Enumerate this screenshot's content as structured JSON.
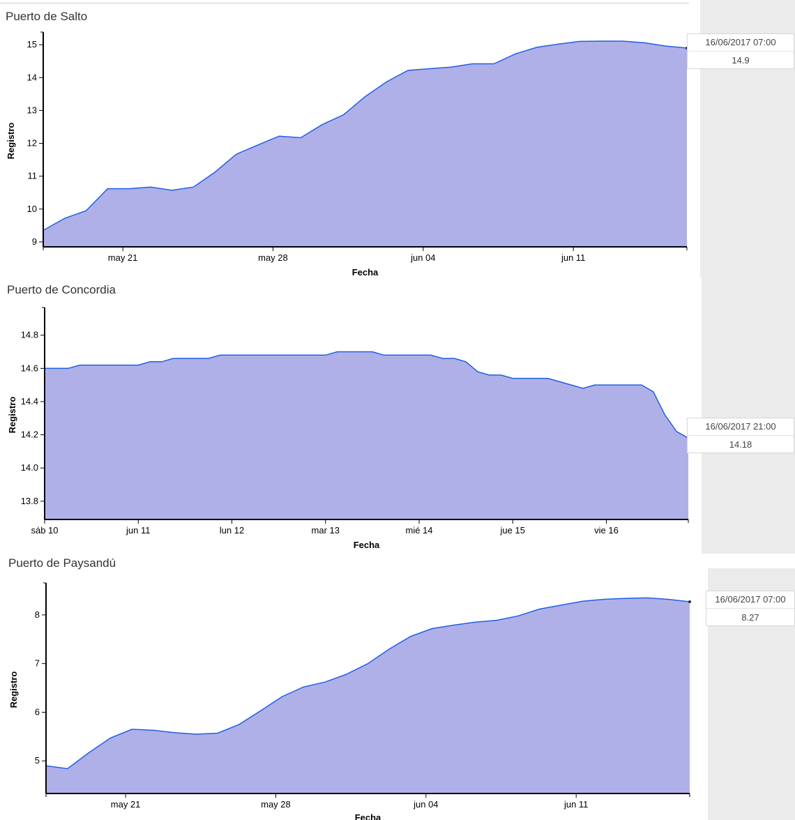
{
  "colors": {
    "area_fill": "#b0b0e8",
    "line": "#1f5fe6",
    "strip": "#ebebeb"
  },
  "chart_data": [
    {
      "type": "area",
      "title": "Puerto de Salto",
      "xlabel": "Fecha",
      "ylabel": "Registro",
      "x_start": "2017-05-17T07:00",
      "x_end": "2017-06-16T07:00",
      "ylim": [
        8.85,
        15.3
      ],
      "yticks": [
        9,
        10,
        11,
        12,
        13,
        14,
        15
      ],
      "xticks": [
        {
          "x": "2017-05-21T00:00",
          "label": "may 21"
        },
        {
          "x": "2017-05-28T00:00",
          "label": "may 28"
        },
        {
          "x": "2017-06-04T00:00",
          "label": "jun 04"
        },
        {
          "x": "2017-06-11T00:00",
          "label": "jun 11"
        }
      ],
      "x": [
        "2017-05-17T07:00",
        "2017-05-18T07:00",
        "2017-05-19T07:00",
        "2017-05-20T07:00",
        "2017-05-21T07:00",
        "2017-05-22T07:00",
        "2017-05-23T07:00",
        "2017-05-24T07:00",
        "2017-05-25T07:00",
        "2017-05-26T07:00",
        "2017-05-27T07:00",
        "2017-05-28T07:00",
        "2017-05-29T07:00",
        "2017-05-30T07:00",
        "2017-05-31T07:00",
        "2017-06-01T07:00",
        "2017-06-02T07:00",
        "2017-06-03T07:00",
        "2017-06-04T07:00",
        "2017-06-05T07:00",
        "2017-06-06T07:00",
        "2017-06-07T07:00",
        "2017-06-08T07:00",
        "2017-06-09T07:00",
        "2017-06-10T07:00",
        "2017-06-11T07:00",
        "2017-06-12T07:00",
        "2017-06-13T07:00",
        "2017-06-14T07:00",
        "2017-06-15T07:00",
        "2017-06-16T07:00"
      ],
      "values": [
        9.35,
        9.72,
        9.95,
        10.62,
        10.62,
        10.67,
        10.57,
        10.67,
        11.12,
        11.67,
        11.95,
        12.22,
        12.17,
        12.57,
        12.87,
        13.42,
        13.87,
        14.22,
        14.27,
        14.32,
        14.42,
        14.42,
        14.72,
        14.92,
        15.02,
        15.1,
        15.11,
        15.11,
        15.06,
        14.96,
        14.9
      ],
      "tooltip": {
        "date": "16/06/2017 07:00",
        "value": "14.9"
      }
    },
    {
      "type": "area",
      "title": "Puerto de Concordia",
      "xlabel": "Fecha",
      "ylabel": "Registro",
      "x_start": "2017-06-10T00:00",
      "x_end": "2017-06-16T21:00",
      "ylim": [
        13.69,
        14.95
      ],
      "yticks": [
        13.8,
        14.0,
        14.2,
        14.4,
        14.6,
        14.8
      ],
      "ytick_labels": [
        "13.8",
        "14.0",
        "14.2",
        "14.4",
        "14.6",
        "14.8"
      ],
      "xticks": [
        {
          "x": "2017-06-10T00:00",
          "label": "sáb 10"
        },
        {
          "x": "2017-06-11T00:00",
          "label": "jun 11"
        },
        {
          "x": "2017-06-12T00:00",
          "label": "lun 12"
        },
        {
          "x": "2017-06-13T00:00",
          "label": "mar 13"
        },
        {
          "x": "2017-06-14T00:00",
          "label": "mié 14"
        },
        {
          "x": "2017-06-15T00:00",
          "label": "jue 15"
        },
        {
          "x": "2017-06-16T00:00",
          "label": "vie 16"
        }
      ],
      "x": [
        "2017-06-10T00:00",
        "2017-06-10T03:00",
        "2017-06-10T06:00",
        "2017-06-10T09:00",
        "2017-06-10T12:00",
        "2017-06-10T15:00",
        "2017-06-10T18:00",
        "2017-06-10T21:00",
        "2017-06-11T00:00",
        "2017-06-11T03:00",
        "2017-06-11T06:00",
        "2017-06-11T09:00",
        "2017-06-11T12:00",
        "2017-06-11T15:00",
        "2017-06-11T18:00",
        "2017-06-11T21:00",
        "2017-06-12T00:00",
        "2017-06-12T03:00",
        "2017-06-12T06:00",
        "2017-06-12T09:00",
        "2017-06-12T12:00",
        "2017-06-12T15:00",
        "2017-06-12T18:00",
        "2017-06-12T21:00",
        "2017-06-13T00:00",
        "2017-06-13T03:00",
        "2017-06-13T06:00",
        "2017-06-13T09:00",
        "2017-06-13T12:00",
        "2017-06-13T15:00",
        "2017-06-13T18:00",
        "2017-06-13T21:00",
        "2017-06-14T00:00",
        "2017-06-14T03:00",
        "2017-06-14T06:00",
        "2017-06-14T09:00",
        "2017-06-14T12:00",
        "2017-06-14T15:00",
        "2017-06-14T18:00",
        "2017-06-14T21:00",
        "2017-06-15T00:00",
        "2017-06-15T03:00",
        "2017-06-15T06:00",
        "2017-06-15T09:00",
        "2017-06-15T12:00",
        "2017-06-15T15:00",
        "2017-06-15T18:00",
        "2017-06-15T21:00",
        "2017-06-16T00:00",
        "2017-06-16T03:00",
        "2017-06-16T06:00",
        "2017-06-16T09:00",
        "2017-06-16T12:00",
        "2017-06-16T15:00",
        "2017-06-16T18:00",
        "2017-06-16T21:00"
      ],
      "values": [
        14.6,
        14.6,
        14.6,
        14.62,
        14.62,
        14.62,
        14.62,
        14.62,
        14.62,
        14.64,
        14.64,
        14.66,
        14.66,
        14.66,
        14.66,
        14.68,
        14.68,
        14.68,
        14.68,
        14.68,
        14.68,
        14.68,
        14.68,
        14.68,
        14.68,
        14.7,
        14.7,
        14.7,
        14.7,
        14.68,
        14.68,
        14.68,
        14.68,
        14.68,
        14.66,
        14.66,
        14.64,
        14.58,
        14.56,
        14.56,
        14.54,
        14.54,
        14.54,
        14.54,
        14.52,
        14.5,
        14.48,
        14.5,
        14.5,
        14.5,
        14.5,
        14.5,
        14.46,
        14.32,
        14.22,
        14.18
      ],
      "tooltip": {
        "date": "16/06/2017 21:00",
        "value": "14.18"
      }
    },
    {
      "type": "area",
      "title": "Puerto de Paysandú",
      "xlabel": "Fecha",
      "ylabel": "Registro",
      "x_start": "2017-05-17T07:00",
      "x_end": "2017-06-16T07:00",
      "ylim": [
        4.33,
        8.6
      ],
      "yticks": [
        5,
        6,
        7,
        8
      ],
      "xticks": [
        {
          "x": "2017-05-21T00:00",
          "label": "may 21"
        },
        {
          "x": "2017-05-28T00:00",
          "label": "may 28"
        },
        {
          "x": "2017-06-04T00:00",
          "label": "jun 04"
        },
        {
          "x": "2017-06-11T00:00",
          "label": "jun 11"
        }
      ],
      "x": [
        "2017-05-17T07:00",
        "2017-05-18T07:00",
        "2017-05-19T07:00",
        "2017-05-20T07:00",
        "2017-05-21T07:00",
        "2017-05-22T07:00",
        "2017-05-23T07:00",
        "2017-05-24T07:00",
        "2017-05-25T07:00",
        "2017-05-26T07:00",
        "2017-05-27T07:00",
        "2017-05-28T07:00",
        "2017-05-29T07:00",
        "2017-05-30T07:00",
        "2017-05-31T07:00",
        "2017-06-01T07:00",
        "2017-06-02T07:00",
        "2017-06-03T07:00",
        "2017-06-04T07:00",
        "2017-06-05T07:00",
        "2017-06-06T07:00",
        "2017-06-07T07:00",
        "2017-06-08T07:00",
        "2017-06-09T07:00",
        "2017-06-10T07:00",
        "2017-06-11T07:00",
        "2017-06-12T07:00",
        "2017-06-13T07:00",
        "2017-06-14T07:00",
        "2017-06-15T07:00",
        "2017-06-16T07:00"
      ],
      "values": [
        4.9,
        4.84,
        5.17,
        5.47,
        5.65,
        5.63,
        5.58,
        5.55,
        5.57,
        5.75,
        6.03,
        6.32,
        6.52,
        6.62,
        6.78,
        7.0,
        7.3,
        7.56,
        7.72,
        7.79,
        7.85,
        7.89,
        7.98,
        8.12,
        8.2,
        8.28,
        8.32,
        8.34,
        8.35,
        8.32,
        8.27
      ],
      "tooltip": {
        "date": "16/06/2017 07:00",
        "value": "8.27"
      }
    }
  ]
}
